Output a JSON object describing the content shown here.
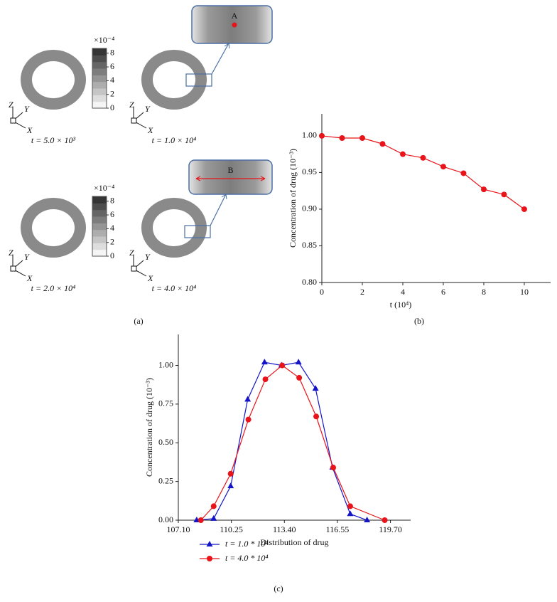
{
  "panel_a": {
    "caption": "(a)",
    "triad": {
      "z": "Z",
      "y": "Y",
      "x": "X"
    },
    "frames": [
      {
        "time": "t = 5.0 × 10³"
      },
      {
        "time": "t = 1.0 × 10⁴"
      },
      {
        "time": "t = 2.0 × 10⁴"
      },
      {
        "time": "t = 4.0 × 10⁴"
      }
    ],
    "insets": [
      {
        "label": "A"
      },
      {
        "label": "B"
      }
    ],
    "colorbars": [
      {
        "unit": "×10⁻⁴",
        "lim": [
          0,
          8.7
        ],
        "ticks": [
          0,
          2,
          4,
          6,
          8
        ]
      },
      {
        "unit": "×10⁻⁴",
        "lim": [
          0,
          8.7
        ],
        "ticks": [
          0,
          2,
          4,
          6,
          8
        ]
      }
    ]
  },
  "chart_data": [
    {
      "type": "line",
      "caption": "(b)",
      "xlabel": "t (10⁴)",
      "ylabel": "Concentration of drug (10⁻³)",
      "x": [
        0,
        1,
        2,
        3,
        4,
        5,
        6,
        7,
        8,
        9,
        10
      ],
      "series": [
        {
          "color": "#e8141a",
          "marker": "circle",
          "values": [
            1.0,
            0.997,
            0.997,
            0.989,
            0.975,
            0.97,
            0.958,
            0.949,
            0.927,
            0.92,
            0.9
          ]
        }
      ],
      "xlim": [
        0,
        11.3
      ],
      "ylim": [
        0.8,
        1.03
      ],
      "xticks": [
        0,
        2,
        4,
        6,
        8,
        10
      ],
      "yticks": [
        {
          "value": 0.8,
          "label": "0.80"
        },
        {
          "value": 0.85,
          "label": "0.85"
        },
        {
          "value": 0.9,
          "label": "0.90"
        },
        {
          "value": 0.95,
          "label": "0.95"
        },
        {
          "value": 1.0,
          "label": "1.00"
        }
      ]
    },
    {
      "type": "line",
      "caption": "(c)",
      "xlabel": "Distribution of drug",
      "ylabel": "Concentration of drug (10⁻³)",
      "series": [
        {
          "name": "t = 1.0 * 10⁴",
          "color": "#1414c8",
          "marker": "triangle",
          "x": [
            108.19,
            109.2,
            110.21,
            111.22,
            112.22,
            113.23,
            114.24,
            115.25,
            116.26,
            117.31,
            118.31
          ],
          "values": [
            0,
            0.01,
            0.22,
            0.78,
            1.02,
            1.0,
            1.02,
            0.85,
            0.34,
            0.04,
            0
          ]
        },
        {
          "name": "t = 4.0 * 10⁴",
          "color": "#e8141a",
          "marker": "circle",
          "x": [
            108.44,
            109.2,
            110.21,
            111.26,
            112.27,
            113.27,
            114.28,
            115.29,
            116.3,
            117.31,
            119.36
          ],
          "values": [
            0,
            0.09,
            0.3,
            0.65,
            0.91,
            1.0,
            0.92,
            0.67,
            0.34,
            0.09,
            0
          ]
        }
      ],
      "xlim": [
        107.1,
        120.9
      ],
      "ylim": [
        0,
        1.2
      ],
      "xticks": [
        {
          "value": 107.1,
          "label": "107.10"
        },
        {
          "value": 110.25,
          "label": "110.25"
        },
        {
          "value": 113.4,
          "label": "113.40"
        },
        {
          "value": 116.55,
          "label": "116.55"
        },
        {
          "value": 119.7,
          "label": "119.70"
        }
      ],
      "yticks": [
        {
          "value": 0,
          "label": "0.00"
        },
        {
          "value": 0.25,
          "label": "0.25"
        },
        {
          "value": 0.5,
          "label": "0.50"
        },
        {
          "value": 0.75,
          "label": "0.75"
        },
        {
          "value": 1.0,
          "label": "1.00"
        }
      ],
      "legend": "bottom-left"
    }
  ]
}
